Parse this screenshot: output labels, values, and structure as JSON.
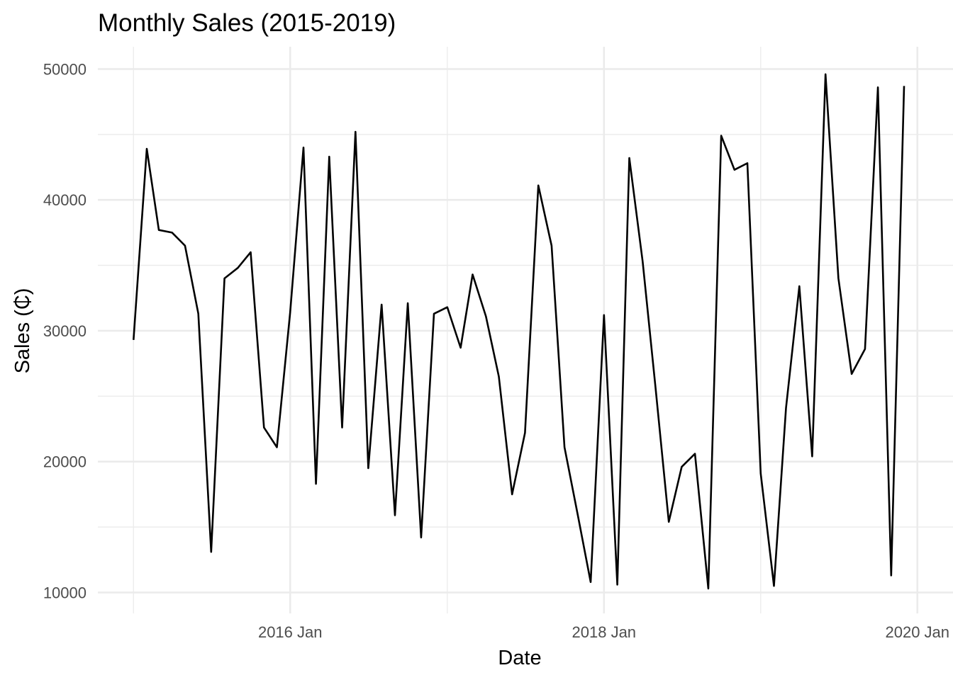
{
  "chart_data": {
    "type": "line",
    "title": "Monthly Sales (2015-2019)",
    "xlabel": "Date",
    "ylabel": "Sales (₵)",
    "x_ticks": [
      {
        "date": "2016-01-01",
        "label": "2016 Jan"
      },
      {
        "date": "2018-01-01",
        "label": "2018 Jan"
      },
      {
        "date": "2020-01-01",
        "label": "2020 Jan"
      }
    ],
    "y_ticks": [
      10000,
      20000,
      30000,
      40000,
      50000
    ],
    "ylim": [
      8400,
      51700
    ],
    "xlim": [
      "2014-10-10",
      "2020-03-24"
    ],
    "grid": true,
    "x": [
      "2015-01",
      "2015-02",
      "2015-03",
      "2015-04",
      "2015-05",
      "2015-06",
      "2015-07",
      "2015-08",
      "2015-09",
      "2015-10",
      "2015-11",
      "2015-12",
      "2016-01",
      "2016-02",
      "2016-03",
      "2016-04",
      "2016-05",
      "2016-06",
      "2016-07",
      "2016-08",
      "2016-09",
      "2016-10",
      "2016-11",
      "2016-12",
      "2017-01",
      "2017-02",
      "2017-03",
      "2017-04",
      "2017-05",
      "2017-06",
      "2017-07",
      "2017-08",
      "2017-09",
      "2017-10",
      "2017-11",
      "2017-12",
      "2018-01",
      "2018-02",
      "2018-03",
      "2018-04",
      "2018-05",
      "2018-06",
      "2018-07",
      "2018-08",
      "2018-09",
      "2018-10",
      "2018-11",
      "2018-12",
      "2019-01",
      "2019-02",
      "2019-03",
      "2019-04",
      "2019-05",
      "2019-06",
      "2019-07",
      "2019-08",
      "2019-09",
      "2019-10",
      "2019-11",
      "2019-12"
    ],
    "series": [
      {
        "values": [
          29300,
          43900,
          37700,
          37500,
          36500,
          31300,
          13100,
          34000,
          34800,
          36000,
          22600,
          21100,
          31400,
          44000,
          18300,
          43300,
          22600,
          45200,
          19500,
          32000,
          15900,
          32100,
          14200,
          31300,
          31800,
          28700,
          34300,
          31100,
          26500,
          17500,
          22200,
          41100,
          36500,
          21100,
          15900,
          10800,
          31200,
          10600,
          43200,
          35300,
          25700,
          15400,
          19600,
          20600,
          10300,
          44900,
          42300,
          42800,
          19100,
          10500,
          24100,
          33400,
          20400,
          49600,
          34000,
          26700,
          28600,
          48600,
          11300,
          48700
        ]
      }
    ],
    "colors": {
      "line": "#000000",
      "grid": "#ebebeb",
      "background": "#ffffff"
    }
  }
}
